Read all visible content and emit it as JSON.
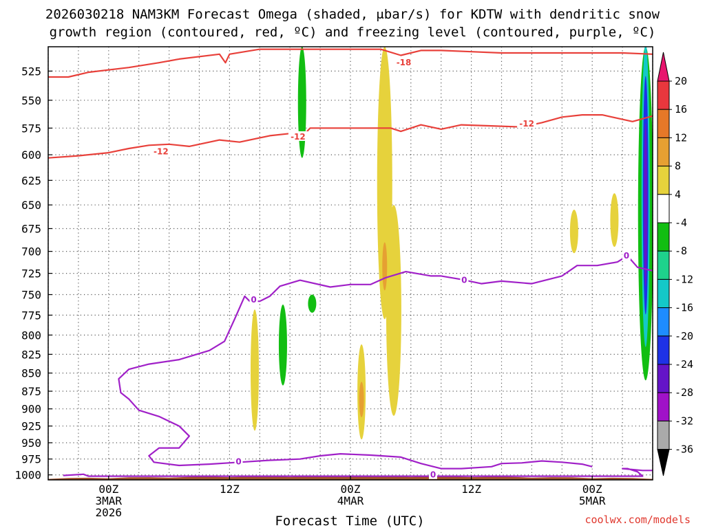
{
  "title_line1": "2026030218 NAM3KM Forecast Omega (shaded, μbar/s) for KDTW with dendritic snow",
  "title_line2": "growth region (contoured, red, ºC) and freezing level (contoured, purple, ºC)",
  "xaxis_label": "Forecast Time (UTC)",
  "credit": "coolwx.com/models",
  "chart_data": {
    "type": "heatmap",
    "title": "2026030218 NAM3KM Forecast Omega (shaded, μbar/s) for KDTW with dendritic snow growth region (contoured, red, ºC) and freezing level (contoured, purple, ºC)",
    "xlabel": "Forecast Time (UTC)",
    "ylabel": "",
    "x_range_hours": [
      0,
      60
    ],
    "x_ticks": [
      {
        "hour": 6,
        "label": "00Z",
        "sub1": "3MAR",
        "sub2": "2026"
      },
      {
        "hour": 18,
        "label": "12Z",
        "sub1": "",
        "sub2": ""
      },
      {
        "hour": 30,
        "label": "00Z",
        "sub1": "4MAR",
        "sub2": ""
      },
      {
        "hour": 42,
        "label": "12Z",
        "sub1": "",
        "sub2": ""
      },
      {
        "hour": 54,
        "label": "00Z",
        "sub1": "5MAR",
        "sub2": ""
      }
    ],
    "y_range_hpa": [
      1008,
      505
    ],
    "y_ticks": [
      525,
      550,
      575,
      600,
      625,
      650,
      675,
      700,
      725,
      750,
      775,
      800,
      825,
      850,
      875,
      900,
      925,
      950,
      975,
      1000
    ],
    "grid": true,
    "colorbar": {
      "labels": [
        "20",
        "16",
        "12",
        "8",
        "4",
        "-4",
        "-8",
        "-12",
        "-16",
        "-20",
        "-24",
        "-28",
        "-32",
        "-36"
      ],
      "colors": [
        "#e8156e",
        "#e8373d",
        "#e67828",
        "#e6a032",
        "#e6d23c",
        "#ffffff",
        "#12be12",
        "#1ed28c",
        "#14c8c8",
        "#1e8cff",
        "#1e32e6",
        "#6414c8",
        "#a012c8",
        "#aaaaaa",
        "#000000"
      ]
    },
    "contours": {
      "dgz_red": {
        "color": "#e8403a",
        "labels": [
          "-18",
          "-12",
          "-12",
          "-12"
        ],
        "upper_-12": [
          [
            0,
            530
          ],
          [
            2,
            530
          ],
          [
            4,
            526
          ],
          [
            8,
            522
          ],
          [
            11,
            518
          ],
          [
            13,
            515
          ],
          [
            17,
            511
          ],
          [
            17.6,
            518
          ],
          [
            18,
            511
          ],
          [
            21,
            507
          ],
          [
            24,
            507
          ],
          [
            27,
            507
          ],
          [
            30,
            507
          ],
          [
            33,
            507
          ],
          [
            35,
            512
          ],
          [
            37,
            508
          ],
          [
            39,
            508
          ],
          [
            42,
            509
          ],
          [
            45,
            510
          ],
          [
            48,
            510
          ],
          [
            51,
            510
          ],
          [
            54,
            510
          ],
          [
            57,
            510
          ],
          [
            60,
            511
          ]
        ],
        "lower_-12": [
          [
            0,
            603
          ],
          [
            3,
            601
          ],
          [
            6,
            598
          ],
          [
            8,
            594
          ],
          [
            10,
            591
          ],
          [
            12,
            590
          ],
          [
            14,
            592
          ],
          [
            17,
            586
          ],
          [
            19,
            588
          ],
          [
            22,
            582
          ],
          [
            24,
            580
          ],
          [
            25,
            585
          ],
          [
            26,
            575
          ],
          [
            28,
            575
          ],
          [
            30,
            575
          ],
          [
            32,
            575
          ],
          [
            34,
            575
          ],
          [
            35,
            578
          ],
          [
            37,
            572
          ],
          [
            39,
            576
          ],
          [
            41,
            572
          ],
          [
            44,
            573
          ],
          [
            47,
            574
          ],
          [
            49,
            570
          ],
          [
            51,
            565
          ],
          [
            53,
            563
          ],
          [
            55,
            563
          ],
          [
            58,
            569
          ],
          [
            60,
            564
          ]
        ]
      },
      "freezing_purple": {
        "color": "#a020c8",
        "labels": [
          "0",
          "0",
          "0",
          "0"
        ],
        "upper_0": [
          [
            60,
            722
          ],
          [
            58.5,
            718
          ],
          [
            57.5,
            705
          ],
          [
            56.5,
            712
          ],
          [
            54.5,
            716
          ],
          [
            52.5,
            716
          ],
          [
            51,
            728
          ],
          [
            48,
            737
          ],
          [
            45,
            734
          ],
          [
            43,
            737
          ],
          [
            41,
            732
          ],
          [
            39,
            728
          ],
          [
            38,
            728
          ],
          [
            35.5,
            723
          ],
          [
            33.5,
            730
          ],
          [
            32,
            738
          ],
          [
            30,
            738
          ],
          [
            28,
            741
          ],
          [
            25,
            733
          ],
          [
            23,
            740
          ],
          [
            22,
            752
          ],
          [
            21,
            758
          ],
          [
            20,
            758
          ],
          [
            19.5,
            752
          ],
          [
            18.5,
            780
          ],
          [
            17.5,
            808
          ],
          [
            16,
            820
          ],
          [
            13,
            832
          ],
          [
            10,
            838
          ],
          [
            8,
            845
          ],
          [
            7,
            858
          ],
          [
            7.2,
            877
          ],
          [
            8,
            886
          ],
          [
            9,
            902
          ],
          [
            11,
            911
          ],
          [
            13,
            925
          ],
          [
            14,
            940
          ],
          [
            13,
            958
          ],
          [
            11,
            958
          ],
          [
            10,
            970
          ],
          [
            10.5,
            980
          ],
          [
            13,
            985
          ],
          [
            16,
            983
          ],
          [
            19,
            980
          ],
          [
            22,
            977
          ],
          [
            25,
            975
          ],
          [
            27,
            970
          ],
          [
            29,
            967
          ],
          [
            32,
            969
          ],
          [
            35,
            972
          ],
          [
            37,
            982
          ],
          [
            39,
            990
          ],
          [
            41,
            990
          ],
          [
            44,
            987
          ],
          [
            45,
            982
          ],
          [
            47,
            981
          ],
          [
            49,
            978
          ],
          [
            51,
            980
          ],
          [
            53,
            983
          ],
          [
            54,
            987
          ]
        ],
        "lower_0": [
          [
            1.5,
            1001
          ],
          [
            3.5,
            999
          ],
          [
            4,
            1002
          ],
          [
            59,
            1002
          ],
          [
            58.5,
            995
          ],
          [
            57.5,
            990
          ],
          [
            57,
            990
          ],
          [
            59,
            993
          ],
          [
            60,
            993
          ]
        ]
      }
    },
    "omega_features": [
      {
        "color": "#12be12",
        "center_hour": 25.2,
        "top_hpa": 505,
        "bottom_hpa": 603
      },
      {
        "color": "#12be12",
        "center_hour": 26.2,
        "top_hpa": 750,
        "bottom_hpa": 772
      },
      {
        "color": "#12be12",
        "center_hour": 23.3,
        "top_hpa": 762,
        "bottom_hpa": 867
      },
      {
        "color": "#12be12",
        "center_hour": 59.3,
        "top_hpa": 505,
        "bottom_hpa": 860
      },
      {
        "color": "#e6d23c",
        "center_hour": 33.4,
        "top_hpa": 505,
        "bottom_hpa": 780
      },
      {
        "color": "#e6d23c",
        "center_hour": 34.3,
        "top_hpa": 650,
        "bottom_hpa": 910
      },
      {
        "color": "#e6d23c",
        "center_hour": 31.1,
        "top_hpa": 812,
        "bottom_hpa": 945
      },
      {
        "color": "#e6d23c",
        "center_hour": 20.5,
        "top_hpa": 768,
        "bottom_hpa": 932
      },
      {
        "color": "#e6d23c",
        "center_hour": 56.2,
        "top_hpa": 638,
        "bottom_hpa": 695
      },
      {
        "color": "#e6d23c",
        "center_hour": 52.2,
        "top_hpa": 655,
        "bottom_hpa": 702
      },
      {
        "color": "#e6a032",
        "center_hour": 31.1,
        "top_hpa": 862,
        "bottom_hpa": 912
      },
      {
        "color": "#e6a032",
        "center_hour": 33.4,
        "top_hpa": 690,
        "bottom_hpa": 745
      }
    ]
  }
}
